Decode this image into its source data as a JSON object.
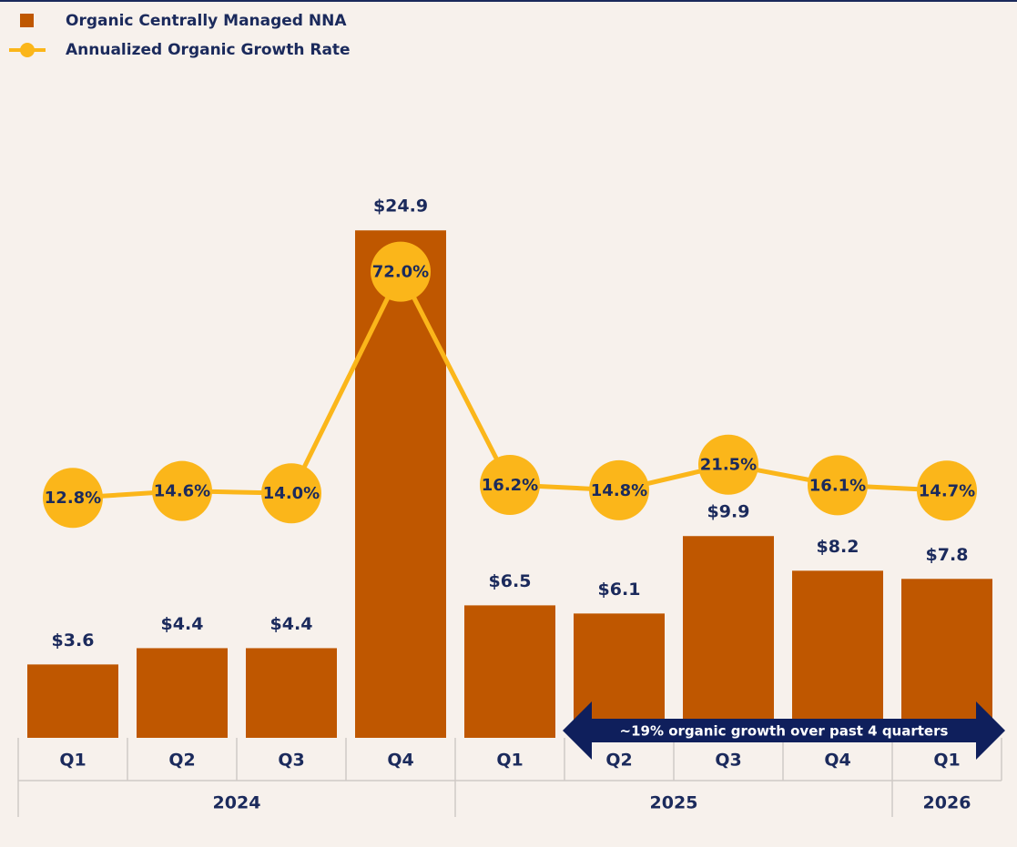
{
  "chart_data": {
    "type": "bar",
    "categories": [
      "Q1",
      "Q2",
      "Q3",
      "Q4",
      "Q1",
      "Q2",
      "Q3",
      "Q4",
      "Q1"
    ],
    "groups": [
      {
        "label": "2024",
        "count": 4
      },
      {
        "label": "2025",
        "count": 4
      },
      {
        "label": "2026",
        "count": 1
      }
    ],
    "series": [
      {
        "name": "Organic Centrally Managed NNA",
        "color": "#bf5700",
        "values": [
          3.6,
          4.4,
          4.4,
          24.9,
          6.5,
          6.1,
          9.9,
          8.2,
          7.8
        ],
        "value_labels": [
          "$3.6",
          "$4.4",
          "$4.4",
          "$24.9",
          "$6.5",
          "$6.1",
          "$9.9",
          "$8.2",
          "$7.8"
        ]
      },
      {
        "name": "Annualized Organic Growth Rate",
        "color": "#fbb61a",
        "type": "line",
        "axis": "y2",
        "values": [
          12.8,
          14.6,
          14.0,
          72.0,
          16.2,
          14.8,
          21.5,
          16.1,
          14.7
        ],
        "value_labels": [
          "12.8%",
          "14.6%",
          "14.0%",
          "72.0%",
          "16.2%",
          "14.8%",
          "21.5%",
          "16.1%",
          "14.7%"
        ]
      }
    ],
    "ylim": [
      0,
      30
    ],
    "y2lim": [
      -50,
      110
    ],
    "annotation": "~19% organic growth over past 4 quarters",
    "legend": "top-left"
  }
}
